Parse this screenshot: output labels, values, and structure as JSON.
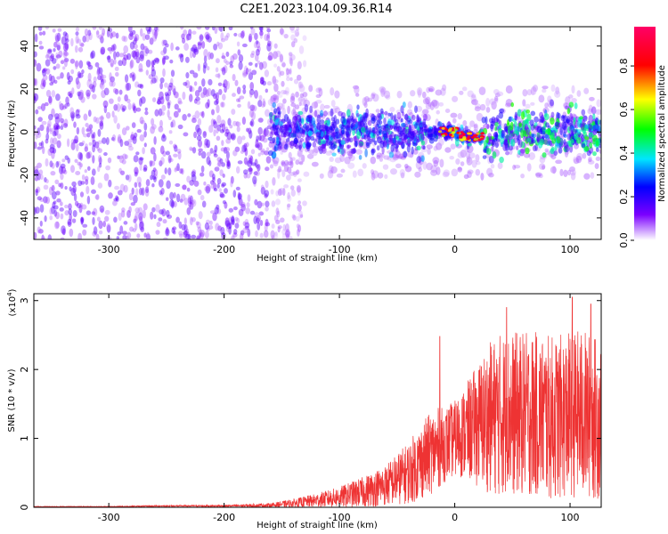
{
  "title": "C2E1.2023.104.09.36.R14",
  "chart_data": [
    {
      "type": "heatmap",
      "xlabel": "Height of straight line (km)",
      "ylabel": "Frequency (Hz)",
      "xlim": [
        -365,
        127
      ],
      "ylim": [
        -50,
        49
      ],
      "xticks": [
        -300,
        -200,
        -100,
        0,
        100
      ],
      "yticks": [
        -40,
        -20,
        0,
        20,
        40
      ],
      "grid": false,
      "colorbar": {
        "label": "Normalized spectral amplitude",
        "range": [
          0,
          0.98
        ],
        "ticks": [
          "0.0",
          "0.2",
          "0.4",
          "0.6",
          "0.8"
        ],
        "tick_values": [
          0,
          0.2,
          0.4,
          0.6,
          0.8
        ],
        "colors": [
          "#ffffff",
          "#7b00ff",
          "#0000ff",
          "#00e5ff",
          "#00ff00",
          "#ffff00",
          "#ff0000",
          "#ff0066"
        ]
      },
      "regions": [
        {
          "description": "broadband noise",
          "x_range": [
            -365,
            -160
          ],
          "freq_spread": 50,
          "amplitude": 0.12
        },
        {
          "description": "band near 0 Hz",
          "x_range": [
            -160,
            127
          ],
          "freq_spread": 8,
          "amplitude": 0.35
        },
        {
          "description": "strong peak",
          "x_range": [
            -15,
            15
          ],
          "freq_center": 0,
          "amplitude": 0.95
        }
      ]
    },
    {
      "type": "line",
      "xlabel": "Height of straight line (km)",
      "ylabel": "SNR (10 * v/v)",
      "y_multiplier_label": "(x10",
      "y_multiplier_exp": "4",
      "y_multiplier_close": ")",
      "xlim": [
        -365,
        127
      ],
      "ylim": [
        0,
        3.1
      ],
      "xticks": [
        -300,
        -200,
        -100,
        0,
        100
      ],
      "yticks": [
        0,
        1,
        2,
        3
      ],
      "grid": false,
      "series": [
        {
          "name": "SNR",
          "color": "#ee3333",
          "x": [
            -365,
            -300,
            -250,
            -200,
            -160,
            -140,
            -120,
            -100,
            -80,
            -60,
            -40,
            -30,
            -20,
            -15,
            -10,
            0,
            10,
            20,
            30,
            40,
            50,
            60,
            70,
            80,
            90,
            100,
            110,
            120,
            127
          ],
          "base": [
            0.01,
            0.01,
            0.02,
            0.02,
            0.03,
            0.06,
            0.1,
            0.15,
            0.22,
            0.32,
            0.5,
            0.65,
            0.8,
            0.85,
            0.9,
            1.0,
            1.1,
            1.2,
            1.3,
            1.35,
            1.35,
            1.35,
            1.35,
            1.3,
            1.3,
            1.35,
            1.35,
            1.3,
            1.3
          ],
          "amp": [
            0.005,
            0.005,
            0.01,
            0.015,
            0.03,
            0.06,
            0.1,
            0.15,
            0.22,
            0.3,
            0.45,
            0.55,
            0.6,
            0.6,
            0.55,
            0.55,
            0.7,
            0.9,
            1.1,
            1.2,
            1.2,
            1.2,
            1.2,
            1.2,
            1.2,
            1.2,
            1.25,
            1.2,
            1.2
          ],
          "spikes": [
            {
              "x": -13,
              "y": 2.48
            },
            {
              "x": 45,
              "y": 2.9
            },
            {
              "x": 102,
              "y": 3.05
            },
            {
              "x": 118,
              "y": 2.95
            }
          ]
        }
      ]
    }
  ]
}
